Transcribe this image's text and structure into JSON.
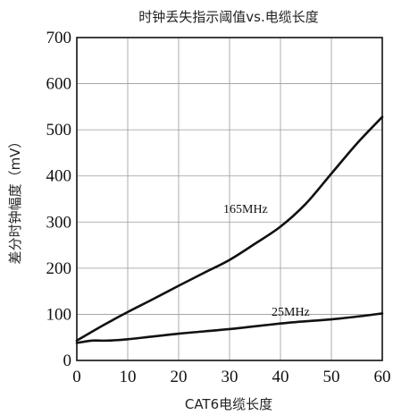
{
  "chart_data": {
    "type": "line",
    "title": "时钟丢失指示阈值vs.电缆长度",
    "xlabel": "CAT6电缆长度",
    "ylabel": "差分时钟幅度（mV）",
    "xlim": [
      0,
      60
    ],
    "ylim": [
      0,
      700
    ],
    "xticks": [
      0,
      10,
      20,
      30,
      40,
      50,
      60
    ],
    "yticks": [
      0,
      100,
      200,
      300,
      400,
      500,
      600,
      700
    ],
    "xtick_labels": [
      "0",
      "10",
      "20",
      "30",
      "40",
      "50",
      "60"
    ],
    "ytick_labels": [
      "0",
      "100",
      "200",
      "300",
      "400",
      "500",
      "600",
      "700"
    ],
    "grid": true,
    "series": [
      {
        "name": "165MHz",
        "x": [
          0,
          5,
          10,
          15,
          20,
          25,
          30,
          35,
          40,
          45,
          50,
          55,
          60
        ],
        "y": [
          43,
          75,
          105,
          133,
          162,
          190,
          218,
          253,
          290,
          340,
          405,
          470,
          528
        ]
      },
      {
        "name": "25MHz",
        "x": [
          0,
          3,
          6,
          10,
          15,
          20,
          25,
          30,
          35,
          40,
          45,
          50,
          55,
          60
        ],
        "y": [
          38,
          43,
          43,
          46,
          52,
          58,
          63,
          68,
          74,
          80,
          85,
          89,
          95,
          102
        ]
      }
    ]
  },
  "colors": {
    "line": "#111111",
    "grid": "#9a9a9a",
    "axis": "#111111"
  }
}
